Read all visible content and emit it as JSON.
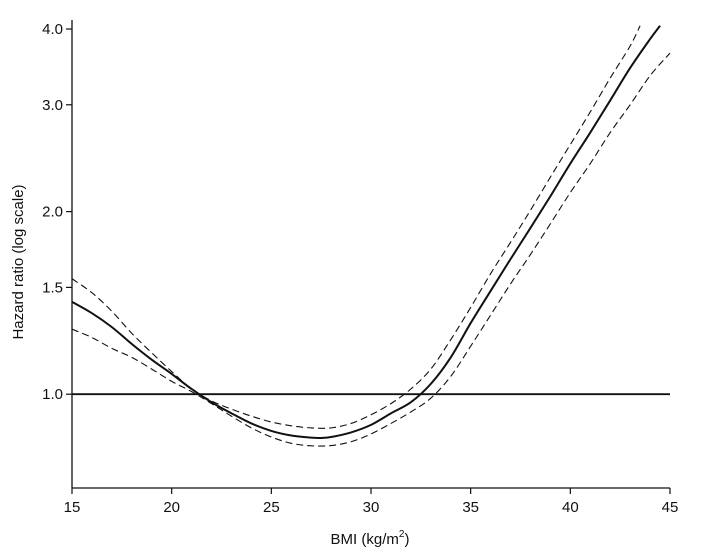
{
  "chart_data": {
    "type": "line",
    "xlabel": "BMI (kg/m",
    "xlabel_sup": "2",
    "xlabel_close": ")",
    "ylabel": "Hazard ratio (log scale)",
    "y_scale": "log",
    "xlim": [
      15,
      45
    ],
    "ylim": [
      0.75,
      4.0
    ],
    "x_ticks": [
      15,
      20,
      25,
      30,
      35,
      40,
      45
    ],
    "y_ticks": [
      {
        "value": 1.0,
        "label": "1.0"
      },
      {
        "value": 1.5,
        "label": "1.5"
      },
      {
        "value": 2.0,
        "label": "2.0"
      },
      {
        "value": 3.0,
        "label": "3.0"
      },
      {
        "value": 4.0,
        "label": "4.0"
      }
    ],
    "grid": false,
    "legend": "none",
    "reference_line": {
      "y": 1.0
    },
    "series": [
      {
        "style": "solid",
        "x": [
          15,
          16,
          17,
          18,
          19,
          20,
          21,
          22,
          23,
          24,
          25,
          26,
          27,
          27.5,
          28,
          29,
          30,
          31,
          32,
          33,
          34,
          35,
          36,
          37,
          38,
          39,
          40,
          41,
          42,
          43,
          44,
          44.5
        ],
        "y": [
          1.42,
          1.36,
          1.29,
          1.21,
          1.14,
          1.08,
          1.02,
          0.97,
          0.93,
          0.895,
          0.87,
          0.855,
          0.848,
          0.847,
          0.85,
          0.865,
          0.89,
          0.93,
          0.97,
          1.04,
          1.15,
          1.31,
          1.48,
          1.67,
          1.88,
          2.12,
          2.4,
          2.7,
          3.05,
          3.45,
          3.85,
          4.05
        ]
      },
      {
        "style": "dashed",
        "x": [
          15,
          16,
          17,
          18,
          19,
          20,
          21,
          22,
          23,
          24,
          25,
          26,
          27,
          28,
          29,
          30,
          31,
          32,
          33,
          34,
          35,
          36,
          37,
          38,
          39,
          40,
          41,
          42,
          43,
          43.5
        ],
        "y": [
          1.55,
          1.47,
          1.37,
          1.26,
          1.17,
          1.09,
          1.02,
          0.975,
          0.945,
          0.92,
          0.9,
          0.887,
          0.88,
          0.88,
          0.895,
          0.925,
          0.965,
          1.02,
          1.1,
          1.23,
          1.39,
          1.58,
          1.78,
          2.01,
          2.28,
          2.58,
          2.92,
          3.32,
          3.75,
          4.05
        ]
      },
      {
        "style": "dashed",
        "x": [
          15,
          16,
          17,
          18,
          19,
          20,
          21,
          22,
          23,
          24,
          25,
          26,
          27,
          28,
          29,
          30,
          31,
          32,
          33,
          34,
          35,
          36,
          37,
          38,
          39,
          40,
          41,
          42,
          43,
          44,
          45
        ],
        "y": [
          1.28,
          1.24,
          1.19,
          1.15,
          1.1,
          1.05,
          1.01,
          0.965,
          0.92,
          0.88,
          0.85,
          0.83,
          0.822,
          0.823,
          0.835,
          0.86,
          0.895,
          0.935,
          0.985,
          1.07,
          1.2,
          1.35,
          1.52,
          1.7,
          1.91,
          2.15,
          2.4,
          2.7,
          3.0,
          3.35,
          3.65
        ]
      }
    ]
  }
}
